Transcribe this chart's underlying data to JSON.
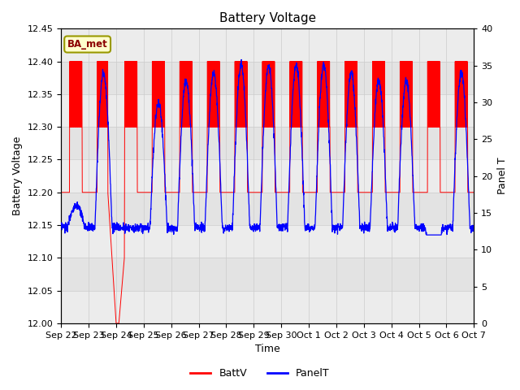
{
  "title": "Battery Voltage",
  "xlabel": "Time",
  "ylabel_left": "Battery Voltage",
  "ylabel_right": "Panel T",
  "ylim_left": [
    12.0,
    12.45
  ],
  "ylim_right": [
    0,
    40
  ],
  "yticks_left": [
    12.0,
    12.05,
    12.1,
    12.15,
    12.2,
    12.25,
    12.3,
    12.35,
    12.4,
    12.45
  ],
  "yticks_right": [
    0,
    5,
    10,
    15,
    20,
    25,
    30,
    35,
    40
  ],
  "xtick_labels": [
    "Sep 22",
    "Sep 23",
    "Sep 24",
    "Sep 25",
    "Sep 26",
    "Sep 27",
    "Sep 28",
    "Sep 29",
    "Sep 30",
    "Oct 1",
    "Oct 2",
    "Oct 3",
    "Oct 4",
    "Oct 5",
    "Oct 6",
    "Oct 7"
  ],
  "batt_color": "#FF0000",
  "panel_color": "#0000FF",
  "background_outer": "#ffffff",
  "background_inner": "#e8e8e8",
  "annotation_text": "BA_met",
  "annotation_bg": "#ffffcc",
  "annotation_border": "#999900",
  "legend_batt": "BattV",
  "legend_panel": "PanelT",
  "title_fontsize": 11,
  "axis_fontsize": 9,
  "tick_fontsize": 8
}
